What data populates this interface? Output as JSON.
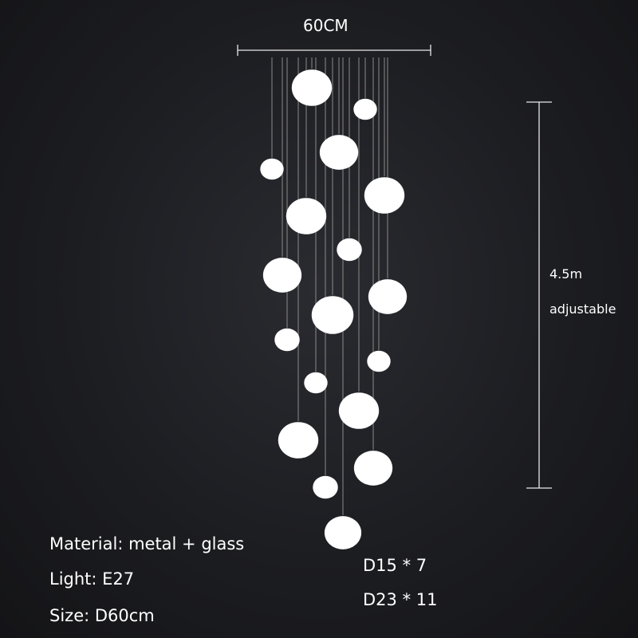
{
  "dimensions": {
    "width_label": "60CM",
    "height_value": "4.5m",
    "height_note": "adjustable"
  },
  "specs": {
    "material": "Material: metal + glass",
    "light": "Light: E27",
    "size": "Size: D60cm"
  },
  "globe_counts": {
    "small": "D15 * 7",
    "large": "D23 * 11"
  },
  "colors": {
    "background": "#1c1d21",
    "glass": "#ffffff",
    "wire": "#8a8a8a",
    "dimension_line": "#e8e8e8"
  }
}
